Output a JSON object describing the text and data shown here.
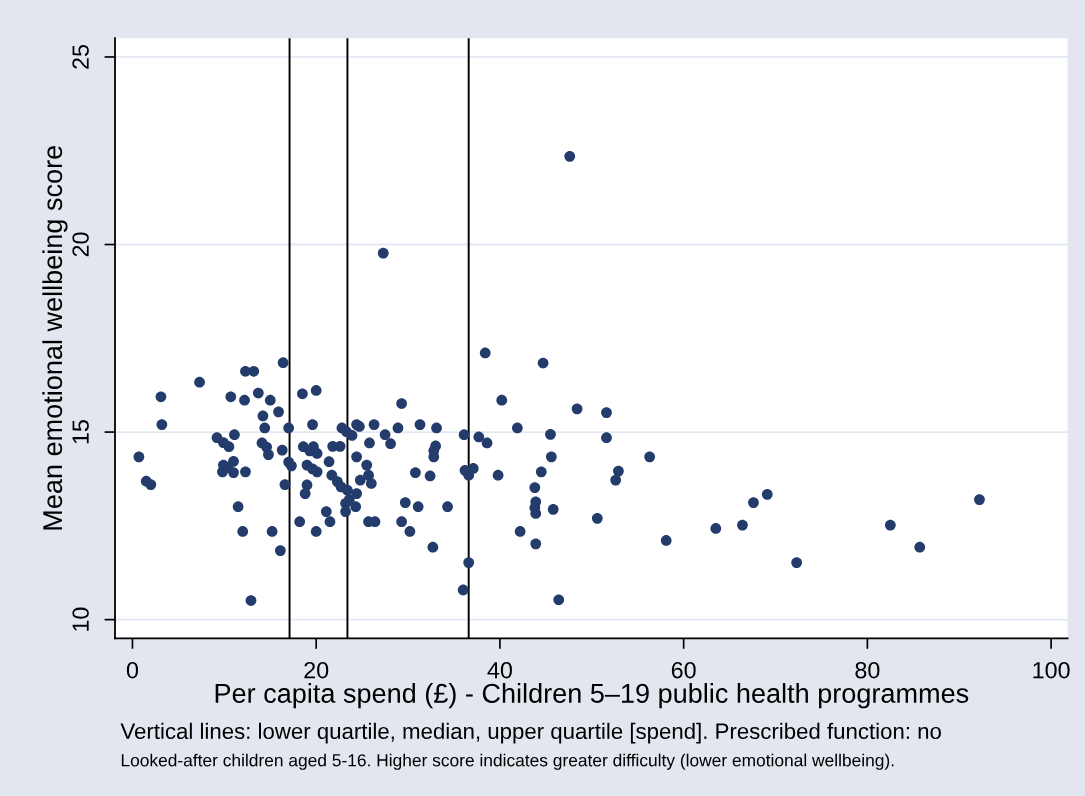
{
  "chart_data": {
    "type": "scatter",
    "xlabel": "Per capita spend (£) - Children 5–19 public health programmes",
    "ylabel": "Mean emotional wellbeing score",
    "annotations": [
      "Vertical lines: lower quartile, median, upper quartile [spend]. Prescribed function: no",
      "Looked-after children aged 5-16. Higher score indicates greater difficulty (lower emotional wellbeing)."
    ],
    "series": [
      {
        "color": "#233c6b",
        "x": [
          0.7,
          1.5,
          2.0,
          3.1,
          3.2,
          7.3,
          10.7,
          12.2,
          12.3,
          13.2,
          13.7,
          15.0,
          15.9,
          16.4,
          14.2,
          14.4,
          17.0,
          18.5,
          20.0,
          19.6,
          11.1,
          9.2,
          9.9,
          10.5,
          9.9,
          11.0,
          9.8,
          11.0,
          12.3,
          14.1,
          14.6,
          14.8,
          16.3,
          17.0,
          17.3,
          16.6,
          11.5,
          12.0,
          15.2,
          16.1,
          12.9,
          18.2,
          20.0,
          21.1,
          21.5,
          19.0,
          18.8,
          18.6,
          19.7,
          20.1,
          19.0,
          20.1,
          21.4,
          21.8,
          22.6,
          22.8,
          24.4,
          23.9,
          22.3,
          23.4,
          24.4,
          23.2,
          24.3,
          23.2,
          24.4,
          24.8,
          21.7,
          38.4,
          40.2,
          41.9,
          29.3,
          26.3,
          27.5,
          28.1,
          28.9,
          31.3,
          33.1,
          33.0,
          32.8,
          25.8,
          25.5,
          25.7,
          26.0,
          30.8,
          32.4,
          25.7,
          26.4,
          29.3,
          30.2,
          29.7,
          31.1,
          34.3,
          32.7,
          36.6,
          36.0,
          36.1,
          37.7,
          38.6,
          36.2,
          37.1,
          36.6,
          39.8,
          42.2,
          27.3,
          47.6,
          44.7,
          48.4,
          51.6,
          45.5,
          51.6,
          45.6,
          56.3,
          44.5,
          52.9,
          52.6,
          43.8,
          43.9,
          43.9,
          45.8,
          50.6,
          43.9,
          58.1,
          46.4,
          63.5,
          66.4,
          67.6,
          69.1,
          72.3,
          82.5,
          85.7,
          92.2,
          10.4,
          19.3,
          19.6,
          22.7,
          23.6,
          23.3,
          24.7,
          32.8,
          43.8
        ],
        "values": [
          14.34,
          13.69,
          13.6,
          15.94,
          15.2,
          16.33,
          15.94,
          15.85,
          16.62,
          16.62,
          16.04,
          15.85,
          15.54,
          16.85,
          15.43,
          15.11,
          15.11,
          16.02,
          16.11,
          15.2,
          14.93,
          14.85,
          14.72,
          14.61,
          14.12,
          14.22,
          13.94,
          13.92,
          13.94,
          14.71,
          14.6,
          14.4,
          14.52,
          14.2,
          14.1,
          13.6,
          13.01,
          12.35,
          12.35,
          11.84,
          10.51,
          12.61,
          12.35,
          12.88,
          12.61,
          13.59,
          13.36,
          14.61,
          14.61,
          14.43,
          14.12,
          13.94,
          14.21,
          14.62,
          14.62,
          15.11,
          15.2,
          14.91,
          13.68,
          13.45,
          13.36,
          13.1,
          13.01,
          12.88,
          14.34,
          13.72,
          13.85,
          17.11,
          15.85,
          15.11,
          15.76,
          15.2,
          14.93,
          14.69,
          15.11,
          15.2,
          15.11,
          14.63,
          14.34,
          14.71,
          14.12,
          13.85,
          13.63,
          13.92,
          13.83,
          12.61,
          12.61,
          12.61,
          12.35,
          13.12,
          13.01,
          13.01,
          11.93,
          11.52,
          10.79,
          14.93,
          14.87,
          14.71,
          13.98,
          14.03,
          13.85,
          13.85,
          12.35,
          19.77,
          22.35,
          16.84,
          15.62,
          15.52,
          14.94,
          14.85,
          14.34,
          14.34,
          13.94,
          13.96,
          13.72,
          13.52,
          13.14,
          12.83,
          12.94,
          12.7,
          12.02,
          12.11,
          10.53,
          12.43,
          12.52,
          13.12,
          13.34,
          11.52,
          12.52,
          11.93,
          13.2,
          14.05,
          14.5,
          14.02,
          13.54,
          13.2,
          15.01,
          15.15,
          14.5,
          12.98
        ]
      }
    ],
    "xlim": [
      -1.9,
      101.8
    ],
    "ylim": [
      9.5,
      25.5
    ],
    "xticks": [
      0,
      20,
      40,
      60,
      80,
      100
    ],
    "yticks": [
      10,
      15,
      20,
      25
    ],
    "grid": "y",
    "marker": "circle",
    "ref_lines": [
      {
        "axis": "x",
        "value": 17.1,
        "color": "#000000"
      },
      {
        "axis": "x",
        "value": 23.4,
        "color": "#000000"
      },
      {
        "axis": "x",
        "value": 36.6,
        "color": "#000000"
      }
    ]
  }
}
